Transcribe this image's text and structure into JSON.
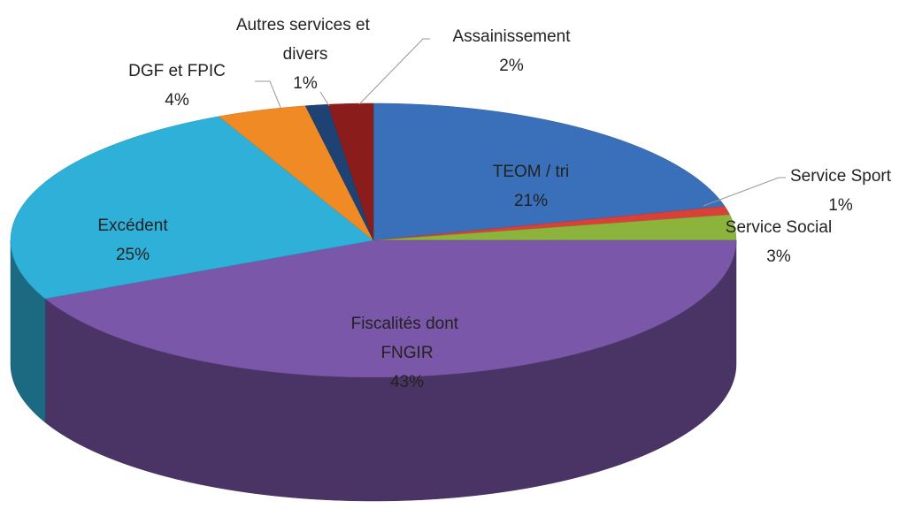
{
  "chart_data": {
    "type": "pie",
    "categories": [
      "TEOM / tri",
      "Service Sport",
      "Service Social",
      "Fiscalités dont FNGIR",
      "Excédent",
      "DGF et FPIC",
      "Autres services et divers",
      "Assainissement"
    ],
    "values": [
      21,
      1,
      3,
      43,
      25,
      4,
      1,
      2
    ],
    "value_labels": [
      "21%",
      "1%",
      "3%",
      "43%",
      "25%",
      "4%",
      "1%",
      "2%"
    ],
    "colors": [
      "#3a70ba",
      "#d8403a",
      "#8cb43c",
      "#7a57a8",
      "#2eb0d8",
      "#f08a24",
      "#1f4275",
      "#8a1c1c"
    ]
  }
}
